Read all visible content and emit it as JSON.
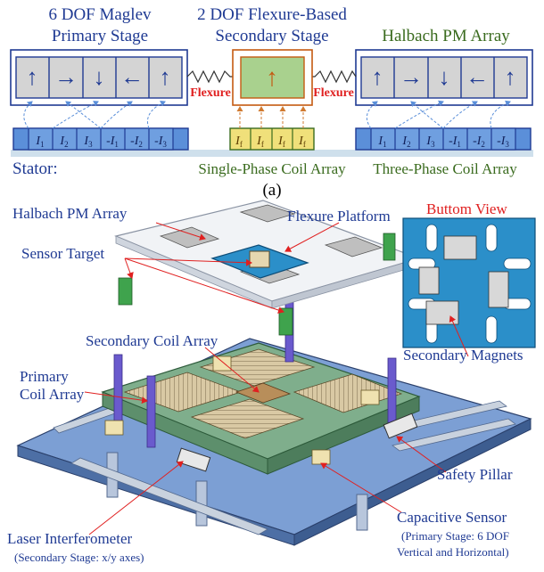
{
  "schematic": {
    "primary_title_1": "6 DOF Maglev",
    "primary_title_2": "Primary Stage",
    "secondary_title_1": "2 DOF Flexure-Based",
    "secondary_title_2": "Secondary Stage",
    "halbach_title": "Halbach PM Array",
    "flexure_label": "Flexure",
    "magnet_arrows": [
      "↑",
      "→",
      "↓",
      "←",
      "↑"
    ],
    "secondary_magnet_arrow": "↑",
    "coil_letter": "I",
    "primary_coils": [
      {
        "sign": "",
        "sub": "1"
      },
      {
        "sign": "",
        "sub": "2"
      },
      {
        "sign": "",
        "sub": "3"
      },
      {
        "sign": "-",
        "sub": "1"
      },
      {
        "sign": "-",
        "sub": "2"
      },
      {
        "sign": "-",
        "sub": "3"
      }
    ],
    "secondary_coils": [
      {
        "sign": "",
        "sub": "f"
      },
      {
        "sign": "",
        "sub": "f"
      },
      {
        "sign": "",
        "sub": "f"
      },
      {
        "sign": "",
        "sub": "f"
      }
    ],
    "stator_label": "Stator:",
    "single_phase_label": "Single-Phase Coil Array",
    "three_phase_label": "Three-Phase Coil Array",
    "subfigure_label": "(a)"
  },
  "model": {
    "halbach_pm_array": "Halbach PM Array",
    "flexure_platform": "Flexure Platform",
    "bottom_view": "Buttom View",
    "sensor_target": "Sensor Target",
    "secondary_coil_array": "Secondary Coil Array",
    "primary_coil_array_1": "Primary",
    "primary_coil_array_2": "Coil Array",
    "secondary_magnets": "Secondary Magnets",
    "safety_pillar": "Safety Pillar",
    "laser_interferometer": "Laser Interferometer",
    "laser_note": "(Secondary Stage: x/y axes)",
    "capacitive_sensor": "Capacitive Sensor",
    "capacitive_note_1": "(Primary Stage: 6 DOF",
    "capacitive_note_2": "Vertical and Horizontal)"
  },
  "colors": {
    "blue_text": "#1f3a93",
    "green_text": "#3a6b1e",
    "red_text": "#e02020",
    "magnet_gray": "#d4d4d4",
    "coil_blue": "#5b8fd9",
    "coil_gold": "#f0e07a",
    "secondary_green": "#a9d18e",
    "stator_blue": "#cfe0ec",
    "platform_blue": "#2b8fc9",
    "base_blue": "#7c9fd4"
  }
}
